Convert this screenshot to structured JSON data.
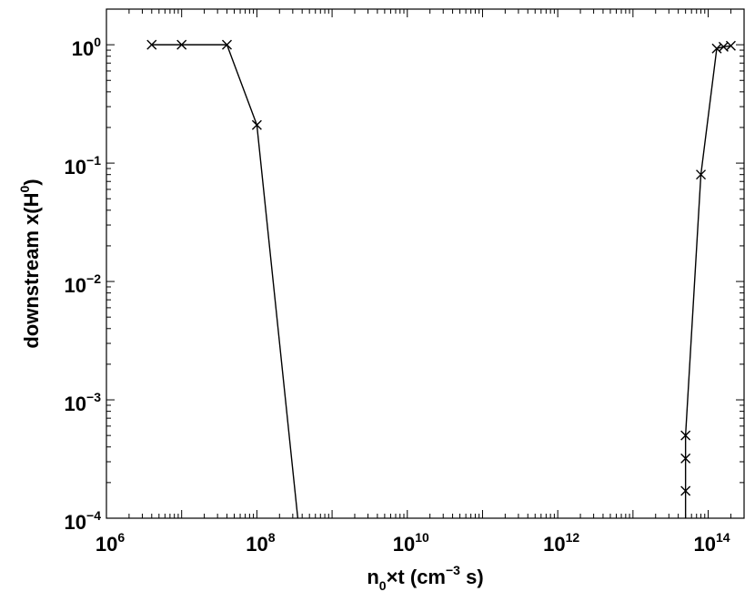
{
  "chart_data": {
    "type": "line",
    "title": "",
    "xlabel": {
      "parts": [
        {
          "t": "n",
          "s": "normal"
        },
        {
          "t": "0",
          "s": "sub"
        },
        {
          "t": "×t (cm",
          "s": "normal"
        },
        {
          "t": "−3",
          "s": "sup"
        },
        {
          "t": " s)",
          "s": "normal"
        }
      ]
    },
    "ylabel": {
      "parts": [
        {
          "t": "downstream x(H",
          "s": "normal"
        },
        {
          "t": "0",
          "s": "sup"
        },
        {
          "t": ")",
          "s": "normal"
        }
      ]
    },
    "x_scale": "log",
    "y_scale": "log",
    "xlim": [
      1000000,
      300000000000000
    ],
    "ylim": [
      0.0001,
      2
    ],
    "grid": false,
    "x_ticks": [
      {
        "value": 1000000,
        "base": "10",
        "exp": "6"
      },
      {
        "value": 100000000,
        "base": "10",
        "exp": "8"
      },
      {
        "value": 10000000000,
        "base": "10",
        "exp": "10"
      },
      {
        "value": 1000000000000,
        "base": "10",
        "exp": "12"
      },
      {
        "value": 100000000000000,
        "base": "10",
        "exp": "14"
      }
    ],
    "y_ticks": [
      {
        "value": 1,
        "base": "10",
        "exp": "0"
      },
      {
        "value": 0.1,
        "base": "10",
        "exp": "−1"
      },
      {
        "value": 0.01,
        "base": "10",
        "exp": "−2"
      },
      {
        "value": 0.001,
        "base": "10",
        "exp": "−3"
      },
      {
        "value": 0.0001,
        "base": "10",
        "exp": "−4"
      }
    ],
    "series": [
      {
        "marker": "x",
        "color": "#000000",
        "points": [
          {
            "x": 4000000,
            "y": 1.0,
            "marker": true
          },
          {
            "x": 10000000,
            "y": 1.0,
            "marker": true
          },
          {
            "x": 40000000,
            "y": 1.0,
            "marker": true
          },
          {
            "x": 100000000,
            "y": 0.21,
            "marker": true
          },
          {
            "x": 350000000,
            "y": 0.0001,
            "marker": false
          }
        ]
      },
      {
        "marker": "x",
        "color": "#000000",
        "points": [
          {
            "x": 50000000000000,
            "y": 0.0001,
            "marker": false
          },
          {
            "x": 50000000000000,
            "y": 0.00017,
            "marker": true
          },
          {
            "x": 50000000000000,
            "y": 0.00032,
            "marker": true
          },
          {
            "x": 50000000000000,
            "y": 0.0005,
            "marker": true
          },
          {
            "x": 80000000000000,
            "y": 0.08,
            "marker": true
          },
          {
            "x": 130000000000000,
            "y": 0.93,
            "marker": true
          },
          {
            "x": 160000000000000,
            "y": 0.96,
            "marker": true
          },
          {
            "x": 200000000000000,
            "y": 0.98,
            "marker": true
          }
        ]
      }
    ]
  }
}
